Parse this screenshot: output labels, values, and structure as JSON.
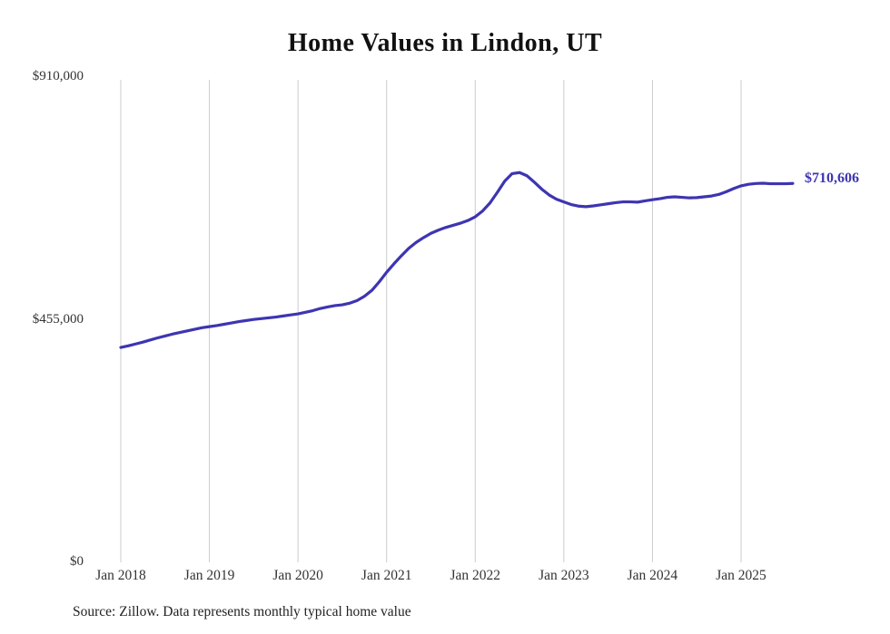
{
  "chart_data": {
    "type": "line",
    "title": "Home Values in Lindon, UT",
    "xlabel": "",
    "ylabel": "",
    "ylim": [
      0,
      910000
    ],
    "y_ticks": [
      "$0",
      "$455,000",
      "$910,000"
    ],
    "x_ticks": [
      "Jan 2018",
      "Jan 2019",
      "Jan 2020",
      "Jan 2021",
      "Jan 2022",
      "Jan 2023",
      "Jan 2024",
      "Jan 2025"
    ],
    "x_start": "Jan 2018",
    "x_end": "Aug 2025",
    "grid": "vertical-only",
    "legend_position": "none",
    "line_color": "#3d35b1",
    "gridline_color": "#cccccc",
    "end_label": "$710,606",
    "latest_value": 710606,
    "source": "Source: Zillow. Data represents monthly typical home value",
    "series": [
      {
        "name": "Typical home value",
        "values": [
          403000,
          406000,
          409500,
          413000,
          417000,
          421000,
          424500,
          428000,
          431000,
          434000,
          437000,
          440000,
          442000,
          444000,
          446500,
          449000,
          451500,
          453500,
          455500,
          457000,
          458500,
          460000,
          462000,
          464000,
          466000,
          469000,
          472000,
          476000,
          479000,
          481500,
          483000,
          486000,
          491000,
          499000,
          510000,
          526000,
          544000,
          560000,
          575000,
          589000,
          600000,
          609000,
          617000,
          623000,
          628000,
          632000,
          636000,
          641000,
          648000,
          659000,
          674000,
          694000,
          715000,
          729000,
          731000,
          725000,
          713000,
          700000,
          689000,
          681000,
          676000,
          671000,
          668000,
          667000,
          668500,
          670500,
          672500,
          674500,
          676000,
          676000,
          675500,
          678000,
          680000,
          682000,
          684500,
          685500,
          684500,
          683500,
          684000,
          685500,
          687000,
          690000,
          695000,
          701000,
          706000,
          709000,
          710500,
          711000,
          710000,
          710000,
          710000,
          710606
        ]
      }
    ]
  }
}
